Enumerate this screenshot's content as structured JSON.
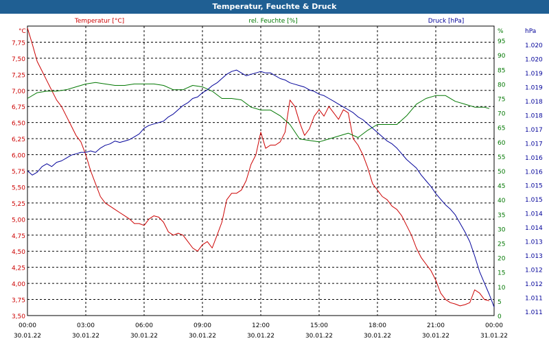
{
  "window": {
    "title": "Temperatur, Feuchte & Druck"
  },
  "colors": {
    "temperature": "#cc0000",
    "humidity": "#007700",
    "pressure": "#000099",
    "title_bar": "#1f5f93"
  },
  "chart_data": {
    "type": "line",
    "title": "Temperatur, Feuchte & Druck",
    "grid": true,
    "x": {
      "min": "2022-01-30 00:00",
      "max": "2022-01-31 00:00",
      "tick_labels": [
        [
          "00:00",
          "30.01.22"
        ],
        [
          "03:00",
          "30.01.22"
        ],
        [
          "06:00",
          "30.01.22"
        ],
        [
          "09:00",
          "30.01.22"
        ],
        [
          "12:00",
          "30.01.22"
        ],
        [
          "15:00",
          "30.01.22"
        ],
        [
          "18:00",
          "30.01.22"
        ],
        [
          "21:00",
          "30.01.22"
        ],
        [
          "00:00",
          "31.01.22"
        ]
      ]
    },
    "axes": {
      "temperature": {
        "label": "Temperatur [°C]",
        "unit": "°C",
        "side": "left",
        "range": [
          3.5,
          8.0
        ],
        "ticks": [
          "3,50",
          "3,75",
          "4,00",
          "4,25",
          "4,50",
          "4,75",
          "5,00",
          "5,25",
          "5,50",
          "5,75",
          "6,00",
          "6,25",
          "6,50",
          "6,75",
          "7,00",
          "7,25",
          "7,50",
          "7,75"
        ]
      },
      "humidity": {
        "label": "rel. Feuchte [%]",
        "unit": "%",
        "side": "right",
        "range": [
          0,
          100
        ],
        "ticks": [
          "0",
          "5",
          "10",
          "15",
          "20",
          "25",
          "30",
          "35",
          "40",
          "45",
          "50",
          "55",
          "60",
          "65",
          "70",
          "75",
          "80",
          "85",
          "90",
          "95"
        ]
      },
      "pressure": {
        "label": "Druck [hPa]",
        "unit": "hPa",
        "side": "right",
        "range": [
          1010.8,
          1021.0
        ],
        "ticks": [
          "1.011",
          "1.011",
          "1.012",
          "1.012",
          "1.013",
          "1.013",
          "1.014",
          "1.014",
          "1.015",
          "1.015",
          "1.016",
          "1.016",
          "1.017",
          "1.017",
          "1.018",
          "1.018",
          "1.019",
          "1.019",
          "1.020",
          "1.020"
        ]
      }
    },
    "series": [
      {
        "name": "Temperatur [°C]",
        "axis": "temperature",
        "points": [
          [
            0,
            7.97
          ],
          [
            0.25,
            7.72
          ],
          [
            0.5,
            7.45
          ],
          [
            0.75,
            7.3
          ],
          [
            1,
            7.15
          ],
          [
            1.25,
            7.0
          ],
          [
            1.5,
            6.85
          ],
          [
            1.75,
            6.75
          ],
          [
            2,
            6.6
          ],
          [
            2.25,
            6.45
          ],
          [
            2.5,
            6.3
          ],
          [
            2.75,
            6.2
          ],
          [
            3,
            6.0
          ],
          [
            3.25,
            5.75
          ],
          [
            3.5,
            5.55
          ],
          [
            3.75,
            5.35
          ],
          [
            4,
            5.25
          ],
          [
            4.25,
            5.2
          ],
          [
            4.5,
            5.15
          ],
          [
            4.75,
            5.1
          ],
          [
            5,
            5.05
          ],
          [
            5.25,
            5.0
          ],
          [
            5.5,
            4.93
          ],
          [
            5.75,
            4.93
          ],
          [
            6,
            4.9
          ],
          [
            6.25,
            5.0
          ],
          [
            6.5,
            5.05
          ],
          [
            6.75,
            5.03
          ],
          [
            7,
            4.95
          ],
          [
            7.25,
            4.8
          ],
          [
            7.5,
            4.75
          ],
          [
            7.75,
            4.78
          ],
          [
            8,
            4.75
          ],
          [
            8.25,
            4.65
          ],
          [
            8.5,
            4.55
          ],
          [
            8.75,
            4.5
          ],
          [
            9,
            4.6
          ],
          [
            9.25,
            4.65
          ],
          [
            9.5,
            4.55
          ],
          [
            9.75,
            4.75
          ],
          [
            10,
            4.95
          ],
          [
            10.25,
            5.3
          ],
          [
            10.5,
            5.4
          ],
          [
            10.75,
            5.4
          ],
          [
            11,
            5.45
          ],
          [
            11.25,
            5.6
          ],
          [
            11.5,
            5.85
          ],
          [
            11.75,
            6.0
          ],
          [
            12,
            6.35
          ],
          [
            12.25,
            6.1
          ],
          [
            12.5,
            6.15
          ],
          [
            12.75,
            6.15
          ],
          [
            13,
            6.2
          ],
          [
            13.25,
            6.35
          ],
          [
            13.5,
            6.85
          ],
          [
            13.75,
            6.75
          ],
          [
            14,
            6.5
          ],
          [
            14.25,
            6.3
          ],
          [
            14.5,
            6.4
          ],
          [
            14.75,
            6.6
          ],
          [
            15,
            6.7
          ],
          [
            15.25,
            6.6
          ],
          [
            15.5,
            6.75
          ],
          [
            15.75,
            6.65
          ],
          [
            16,
            6.55
          ],
          [
            16.25,
            6.7
          ],
          [
            16.5,
            6.65
          ],
          [
            16.75,
            6.25
          ],
          [
            17,
            6.15
          ],
          [
            17.25,
            6.0
          ],
          [
            17.5,
            5.8
          ],
          [
            17.75,
            5.55
          ],
          [
            18,
            5.45
          ],
          [
            18.25,
            5.35
          ],
          [
            18.5,
            5.3
          ],
          [
            18.75,
            5.2
          ],
          [
            19,
            5.15
          ],
          [
            19.25,
            5.05
          ],
          [
            19.5,
            4.9
          ],
          [
            19.75,
            4.75
          ],
          [
            20,
            4.55
          ],
          [
            20.25,
            4.4
          ],
          [
            20.5,
            4.3
          ],
          [
            20.75,
            4.2
          ],
          [
            21,
            4.05
          ],
          [
            21.25,
            3.85
          ],
          [
            21.5,
            3.75
          ],
          [
            21.75,
            3.7
          ],
          [
            22,
            3.68
          ],
          [
            22.25,
            3.65
          ],
          [
            22.5,
            3.67
          ],
          [
            22.75,
            3.7
          ],
          [
            23,
            3.9
          ],
          [
            23.25,
            3.85
          ],
          [
            23.5,
            3.75
          ],
          [
            23.75,
            3.73
          ]
        ]
      },
      {
        "name": "rel. Feuchte [%]",
        "axis": "humidity",
        "points": [
          [
            0,
            75
          ],
          [
            0.5,
            77
          ],
          [
            1,
            77.5
          ],
          [
            1.5,
            77.5
          ],
          [
            2,
            78
          ],
          [
            2.5,
            79
          ],
          [
            3,
            80
          ],
          [
            3.5,
            80.5
          ],
          [
            4,
            80
          ],
          [
            4.5,
            79.5
          ],
          [
            5,
            79.5
          ],
          [
            5.5,
            80
          ],
          [
            6,
            80
          ],
          [
            6.5,
            80
          ],
          [
            7,
            79.5
          ],
          [
            7.5,
            78
          ],
          [
            8,
            78
          ],
          [
            8.5,
            79.5
          ],
          [
            9,
            79
          ],
          [
            9.5,
            77.5
          ],
          [
            10,
            75
          ],
          [
            10.5,
            75
          ],
          [
            11,
            74.5
          ],
          [
            11.5,
            72
          ],
          [
            12,
            71
          ],
          [
            12.5,
            71
          ],
          [
            13,
            69
          ],
          [
            13.5,
            66
          ],
          [
            14,
            61
          ],
          [
            14.5,
            60.5
          ],
          [
            15,
            60
          ],
          [
            15.5,
            61
          ],
          [
            16,
            62
          ],
          [
            16.5,
            63
          ],
          [
            17,
            61.5
          ],
          [
            17.5,
            64
          ],
          [
            18,
            66
          ],
          [
            18.5,
            66
          ],
          [
            19,
            66
          ],
          [
            19.5,
            69
          ],
          [
            20,
            73
          ],
          [
            20.5,
            75
          ],
          [
            21,
            76
          ],
          [
            21.5,
            76
          ],
          [
            22,
            74
          ],
          [
            22.5,
            73
          ],
          [
            23,
            72
          ],
          [
            23.5,
            72
          ],
          [
            23.75,
            71.5
          ]
        ]
      },
      {
        "name": "Druck [hPa]",
        "axis": "pressure",
        "points": [
          [
            0,
            1015.9
          ],
          [
            0.25,
            1015.75
          ],
          [
            0.5,
            1015.85
          ],
          [
            0.75,
            1016.05
          ],
          [
            1,
            1016.15
          ],
          [
            1.25,
            1016.05
          ],
          [
            1.5,
            1016.2
          ],
          [
            1.75,
            1016.25
          ],
          [
            2,
            1016.35
          ],
          [
            2.25,
            1016.45
          ],
          [
            2.5,
            1016.5
          ],
          [
            2.75,
            1016.55
          ],
          [
            3,
            1016.55
          ],
          [
            3.25,
            1016.6
          ],
          [
            3.5,
            1016.55
          ],
          [
            3.75,
            1016.7
          ],
          [
            4,
            1016.8
          ],
          [
            4.25,
            1016.85
          ],
          [
            4.5,
            1016.95
          ],
          [
            4.75,
            1016.9
          ],
          [
            5,
            1016.95
          ],
          [
            5.25,
            1017.0
          ],
          [
            5.5,
            1017.1
          ],
          [
            5.75,
            1017.2
          ],
          [
            6,
            1017.4
          ],
          [
            6.25,
            1017.5
          ],
          [
            6.5,
            1017.55
          ],
          [
            6.75,
            1017.6
          ],
          [
            7,
            1017.65
          ],
          [
            7.25,
            1017.8
          ],
          [
            7.5,
            1017.9
          ],
          [
            7.75,
            1018.05
          ],
          [
            8,
            1018.2
          ],
          [
            8.25,
            1018.3
          ],
          [
            8.5,
            1018.45
          ],
          [
            8.75,
            1018.5
          ],
          [
            9,
            1018.65
          ],
          [
            9.25,
            1018.75
          ],
          [
            9.5,
            1018.9
          ],
          [
            9.75,
            1019.0
          ],
          [
            10,
            1019.15
          ],
          [
            10.25,
            1019.3
          ],
          [
            10.5,
            1019.4
          ],
          [
            10.75,
            1019.45
          ],
          [
            11,
            1019.35
          ],
          [
            11.25,
            1019.25
          ],
          [
            11.5,
            1019.3
          ],
          [
            11.75,
            1019.35
          ],
          [
            12,
            1019.4
          ],
          [
            12.25,
            1019.35
          ],
          [
            12.5,
            1019.35
          ],
          [
            12.75,
            1019.25
          ],
          [
            13,
            1019.15
          ],
          [
            13.25,
            1019.1
          ],
          [
            13.5,
            1019.0
          ],
          [
            13.75,
            1018.95
          ],
          [
            14,
            1018.9
          ],
          [
            14.25,
            1018.85
          ],
          [
            14.5,
            1018.75
          ],
          [
            14.75,
            1018.7
          ],
          [
            15,
            1018.6
          ],
          [
            15.25,
            1018.55
          ],
          [
            15.5,
            1018.45
          ],
          [
            15.75,
            1018.35
          ],
          [
            16,
            1018.25
          ],
          [
            16.25,
            1018.15
          ],
          [
            16.5,
            1018.05
          ],
          [
            16.75,
            1017.95
          ],
          [
            17,
            1017.8
          ],
          [
            17.25,
            1017.7
          ],
          [
            17.5,
            1017.55
          ],
          [
            17.75,
            1017.4
          ],
          [
            18,
            1017.25
          ],
          [
            18.25,
            1017.1
          ],
          [
            18.5,
            1016.95
          ],
          [
            18.75,
            1016.85
          ],
          [
            19,
            1016.7
          ],
          [
            19.25,
            1016.5
          ],
          [
            19.5,
            1016.3
          ],
          [
            19.75,
            1016.15
          ],
          [
            20,
            1016.0
          ],
          [
            20.25,
            1015.75
          ],
          [
            20.5,
            1015.55
          ],
          [
            20.75,
            1015.35
          ],
          [
            21,
            1015.1
          ],
          [
            21.25,
            1014.9
          ],
          [
            21.5,
            1014.7
          ],
          [
            21.75,
            1014.55
          ],
          [
            22,
            1014.35
          ],
          [
            22.25,
            1014.05
          ],
          [
            22.5,
            1013.75
          ],
          [
            22.75,
            1013.4
          ],
          [
            23,
            1012.9
          ],
          [
            23.25,
            1012.35
          ],
          [
            23.5,
            1011.95
          ],
          [
            23.75,
            1011.55
          ],
          [
            24,
            1011.1
          ]
        ]
      }
    ]
  }
}
